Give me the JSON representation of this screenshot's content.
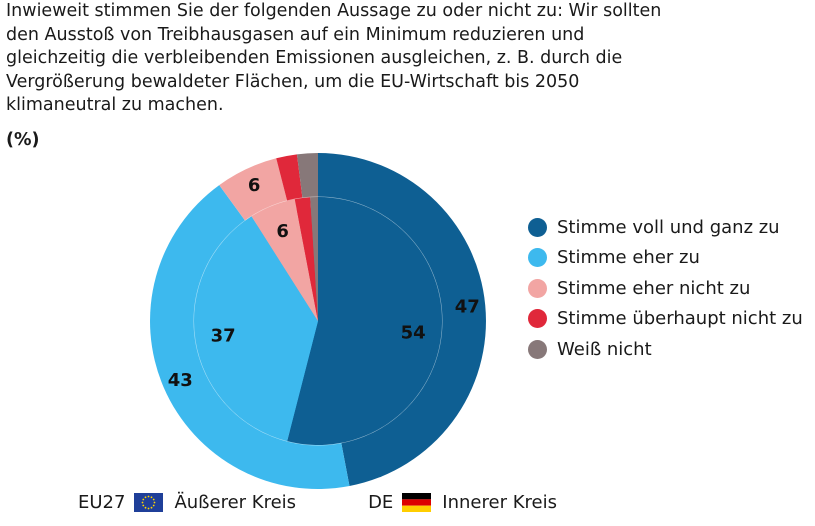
{
  "chart_data": {
    "type": "pie",
    "title_lines": [
      "Inwieweit stimmen Sie der folgenden Aussage zu oder nicht zu: Wir sollten",
      "den Ausstoß von Treibhausgasen auf ein Minimum reduzieren und",
      "gleichzeitig die verbleibenden Emissionen ausgleichen, z. B. durch die",
      "Vergrößerung bewaldeter Flächen, um die EU-Wirtschaft bis 2050",
      "klimaneutral zu machen."
    ],
    "unit": "(%)",
    "categories": [
      "Stimme voll und ganz zu",
      "Stimme eher zu",
      "Stimme eher nicht zu",
      "Stimme überhaupt nicht zu",
      "Weiß nicht"
    ],
    "colors": [
      "#0e5f93",
      "#3db9ee",
      "#f2a5a3",
      "#e0283a",
      "#877879"
    ],
    "series": [
      {
        "name": "EU27",
        "ring": "outer",
        "values": [
          47,
          43,
          6,
          2,
          2
        ],
        "labels": [
          "47",
          "43",
          "6",
          "",
          ""
        ]
      },
      {
        "name": "DE",
        "ring": "inner",
        "values": [
          54,
          37,
          6,
          2,
          1
        ],
        "labels": [
          "54",
          "37",
          "6",
          "",
          ""
        ]
      }
    ]
  },
  "footer": {
    "outer_code": "EU27",
    "outer_text": "Äußerer Kreis",
    "inner_code": "DE",
    "inner_text": "Innerer Kreis"
  }
}
